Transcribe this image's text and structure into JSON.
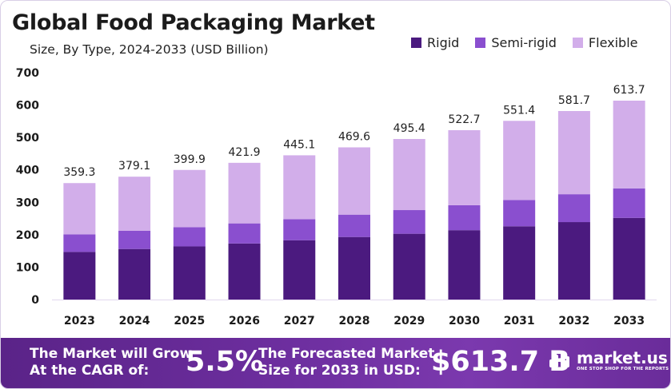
{
  "header": {
    "title": "Global Food Packaging Market",
    "subtitle": "Size, By Type, 2024-2033 (USD Billion)"
  },
  "legend": [
    {
      "label": "Rigid",
      "color": "#4b1a7f"
    },
    {
      "label": "Semi-rigid",
      "color": "#8a4fcf"
    },
    {
      "label": "Flexible",
      "color": "#d2aeea"
    }
  ],
  "chart_data": {
    "type": "bar",
    "stacked": true,
    "categories": [
      "2023",
      "2024",
      "2025",
      "2026",
      "2027",
      "2028",
      "2029",
      "2030",
      "2031",
      "2032",
      "2033"
    ],
    "series": [
      {
        "name": "Rigid",
        "color": "#4b1a7f",
        "values": [
          147,
          156,
          164,
          173,
          183,
          193,
          203,
          214,
          226,
          239,
          252
        ]
      },
      {
        "name": "Semi-rigid",
        "color": "#8a4fcf",
        "values": [
          54,
          56,
          59,
          62,
          65,
          69,
          73,
          77,
          81,
          86,
          91
        ]
      },
      {
        "name": "Flexible",
        "color": "#d2aeea",
        "values": [
          158.3,
          167.1,
          176.9,
          186.9,
          197.1,
          207.6,
          219.4,
          231.7,
          244.4,
          256.7,
          270.7
        ]
      }
    ],
    "totals": [
      359.3,
      379.1,
      399.9,
      421.9,
      445.1,
      469.6,
      495.4,
      522.7,
      551.4,
      581.7,
      613.7
    ],
    "total_labels": [
      "359.3",
      "379.1",
      "399.9",
      "421.9",
      "445.1",
      "469.6",
      "495.4",
      "522.7",
      "551.4",
      "581.7",
      "613.7"
    ],
    "ylim": [
      0,
      700
    ],
    "yticks": [
      0,
      100,
      200,
      300,
      400,
      500,
      600,
      700
    ],
    "grid": false,
    "legend_position": "top-right"
  },
  "banner": {
    "cagr_text_line1": "The Market will Grow",
    "cagr_text_line2": "At the CAGR of:",
    "cagr_value": "5.5%",
    "forecast_text_line1": "The Forecasted Market",
    "forecast_text_line2": "Size for 2033 in USD:",
    "forecast_value": "$613.7 B",
    "brand_name": "market.us",
    "brand_tagline": "ONE STOP SHOP FOR THE REPORTS"
  }
}
